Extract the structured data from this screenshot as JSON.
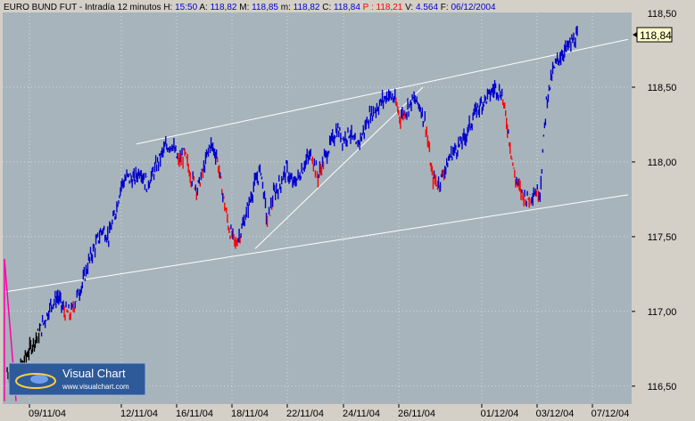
{
  "header": {
    "symbol": "EURO BUND FUT",
    "interval": "Intradía 12 minutos",
    "h_label": "H:",
    "h_value": "15:50",
    "a_label": "A:",
    "a_value": "118,82",
    "m_label": "M:",
    "m_value": "118,85",
    "mn_label": "m:",
    "mn_value": "118,82",
    "c_label": "C:",
    "c_value": "118,84",
    "p_label": "P :",
    "p_value": "118,21",
    "v_label": "V:",
    "v_value": "4.564",
    "f_label": "F:",
    "f_value": "06/12/2004"
  },
  "last_price_box": "118,84",
  "logo": {
    "name": "Visual Chart",
    "url": "www.visualchart.com"
  },
  "colors": {
    "background": "#a8b4bc",
    "axis_panel": "#d4d0c8",
    "up": "#0000cc",
    "down": "#ff0000",
    "early": "#000000",
    "magenta": "#ff00aa",
    "trendline": "#ffffff",
    "grid": "#ffffff"
  },
  "chart_data": {
    "type": "line",
    "yticks": [
      "116,50",
      "117,00",
      "117,50",
      "118,00",
      "118,50"
    ],
    "top_tick_partial": "118,50",
    "xticks": [
      "09/11/04",
      "12/11/04",
      "16/11/04",
      "18/11/04",
      "22/11/04",
      "24/11/04",
      "26/11/04",
      "01/12/04",
      "03/12/04",
      "07/12/04"
    ],
    "ylim": [
      116.38,
      119.0
    ],
    "series_points": [
      [
        0,
        116.6
      ],
      [
        1,
        116.55
      ],
      [
        2,
        116.62
      ],
      [
        3,
        116.7
      ],
      [
        4,
        116.78
      ],
      [
        5,
        116.85
      ],
      [
        6,
        116.95
      ],
      [
        7,
        117.05
      ],
      [
        8,
        117.1
      ],
      [
        9,
        117.0
      ],
      [
        10,
        116.98
      ],
      [
        11,
        117.1
      ],
      [
        12,
        117.2
      ],
      [
        13,
        117.35
      ],
      [
        14,
        117.45
      ],
      [
        15,
        117.55
      ],
      [
        16,
        117.5
      ],
      [
        17,
        117.65
      ],
      [
        18,
        117.85
      ],
      [
        19,
        117.9
      ],
      [
        20,
        117.88
      ],
      [
        21,
        117.95
      ],
      [
        22,
        117.85
      ],
      [
        23,
        117.92
      ],
      [
        24,
        118.02
      ],
      [
        25,
        118.1
      ],
      [
        26,
        118.12
      ],
      [
        27,
        118.0
      ],
      [
        28,
        118.05
      ],
      [
        29,
        117.9
      ],
      [
        30,
        117.82
      ],
      [
        31,
        117.95
      ],
      [
        32,
        118.12
      ],
      [
        33,
        118.05
      ],
      [
        34,
        117.78
      ],
      [
        35,
        117.55
      ],
      [
        36,
        117.45
      ],
      [
        37,
        117.55
      ],
      [
        38,
        117.7
      ],
      [
        39,
        117.85
      ],
      [
        40,
        117.95
      ],
      [
        41,
        117.6
      ],
      [
        42,
        117.78
      ],
      [
        43,
        117.85
      ],
      [
        44,
        117.95
      ],
      [
        45,
        117.85
      ],
      [
        46,
        117.9
      ],
      [
        47,
        118.0
      ],
      [
        48,
        118.05
      ],
      [
        49,
        117.9
      ],
      [
        50,
        118.02
      ],
      [
        51,
        118.12
      ],
      [
        52,
        118.22
      ],
      [
        53,
        118.15
      ],
      [
        54,
        118.2
      ],
      [
        55,
        118.1
      ],
      [
        56,
        118.18
      ],
      [
        57,
        118.3
      ],
      [
        58,
        118.35
      ],
      [
        59,
        118.4
      ],
      [
        60,
        118.45
      ],
      [
        61,
        118.42
      ],
      [
        62,
        118.3
      ],
      [
        63,
        118.35
      ],
      [
        64,
        118.42
      ],
      [
        65,
        118.38
      ],
      [
        66,
        118.25
      ],
      [
        67,
        117.9
      ],
      [
        68,
        117.85
      ],
      [
        69,
        117.95
      ],
      [
        70,
        118.05
      ],
      [
        71,
        118.1
      ],
      [
        72,
        118.15
      ],
      [
        73,
        118.25
      ],
      [
        74,
        118.35
      ],
      [
        75,
        118.4
      ],
      [
        76,
        118.45
      ],
      [
        77,
        118.5
      ],
      [
        78,
        118.45
      ],
      [
        79,
        118.2
      ],
      [
        80,
        117.9
      ],
      [
        81,
        117.8
      ],
      [
        82,
        117.75
      ],
      [
        83,
        117.8
      ],
      [
        84,
        117.8
      ],
      [
        85,
        118.4
      ],
      [
        86,
        118.6
      ],
      [
        87,
        118.7
      ],
      [
        88,
        118.75
      ],
      [
        89,
        118.8
      ],
      [
        90,
        118.84
      ]
    ],
    "series_x_range": [
      0,
      90
    ],
    "last_value": 118.84
  }
}
